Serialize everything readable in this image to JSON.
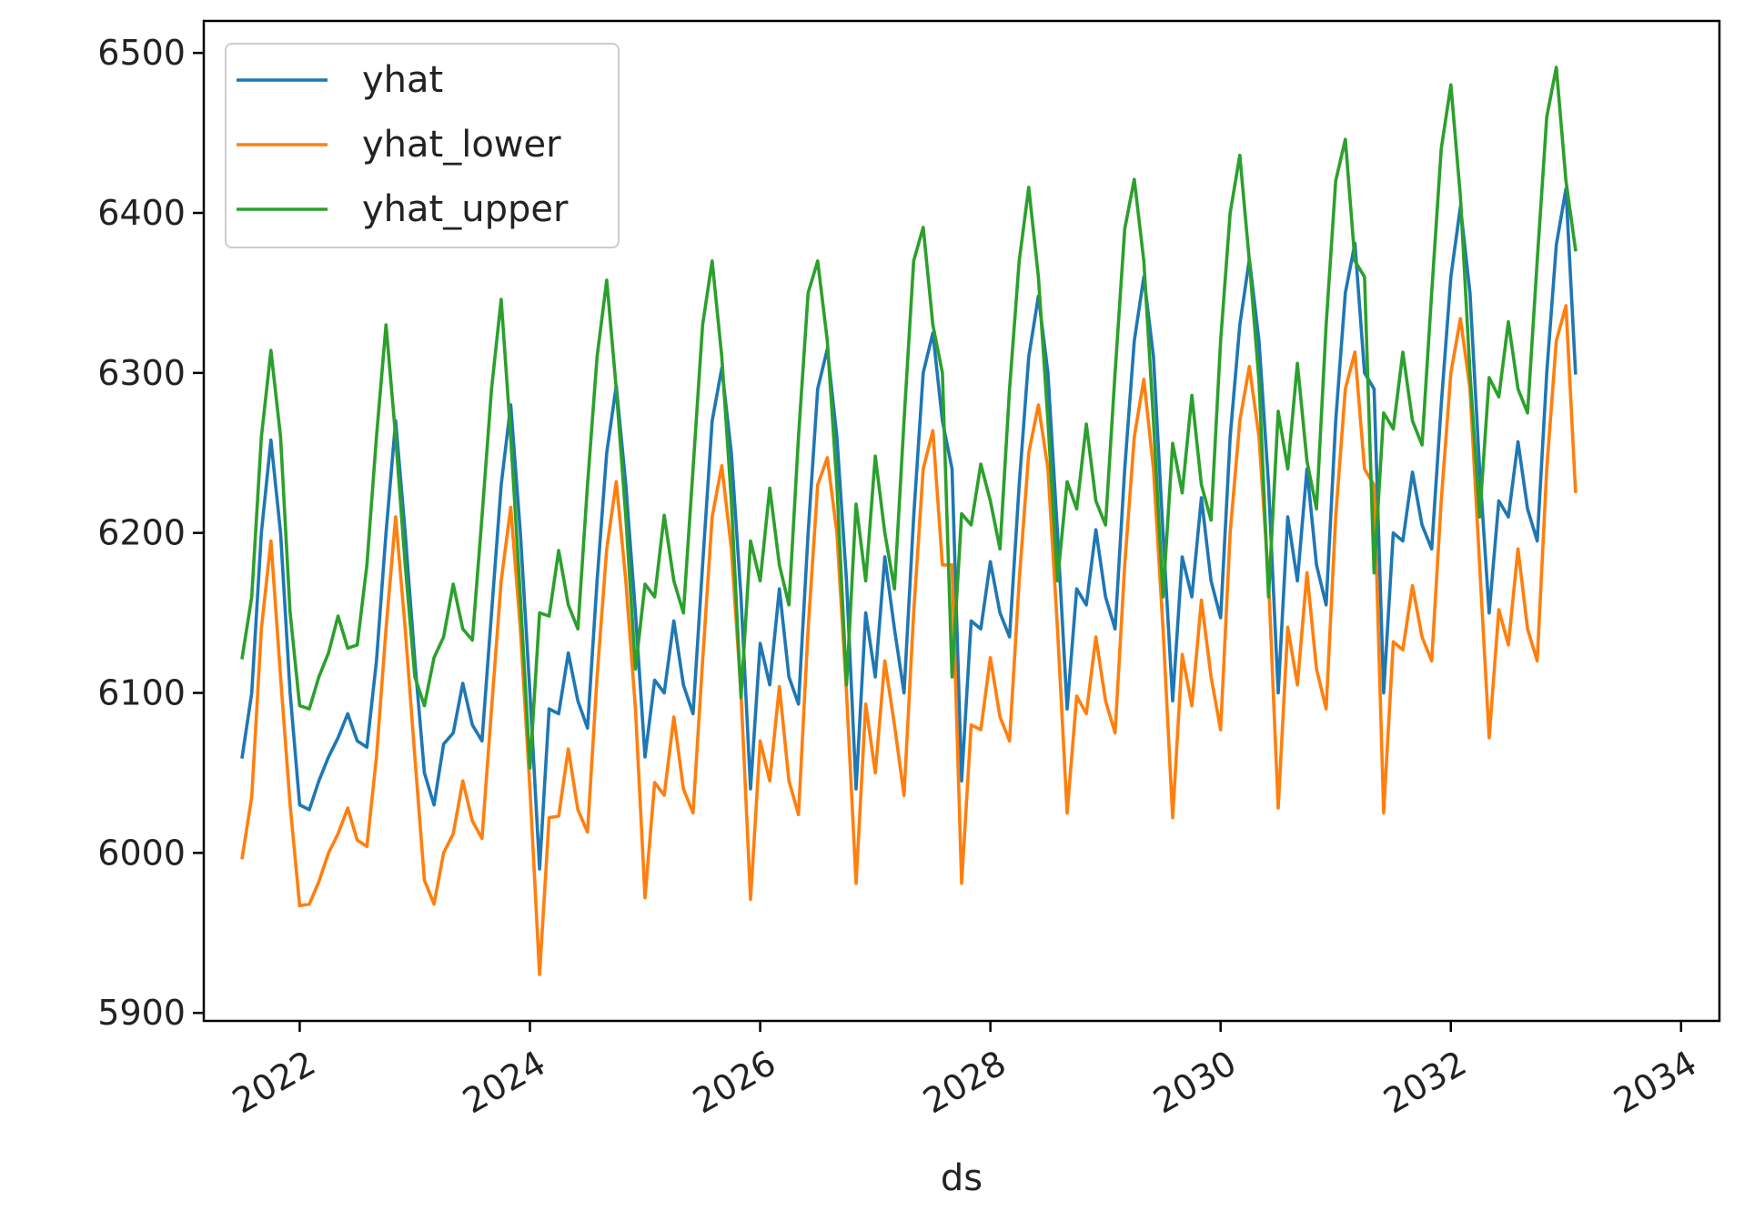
{
  "chart_data": {
    "type": "line",
    "title": "",
    "xlabel": "ds",
    "ylabel": "",
    "xlim": [
      "2021-03-01",
      "2034-05-01"
    ],
    "ylim": [
      5895,
      6520
    ],
    "x_ticks": [
      "2022",
      "2024",
      "2026",
      "2028",
      "2030",
      "2032",
      "2034"
    ],
    "y_ticks": [
      "5900",
      "6000",
      "6100",
      "6200",
      "6300",
      "6400",
      "6500"
    ],
    "legend_position": "upper left",
    "grid": false,
    "x_start": "2021-07-01",
    "x_frequency": "monthly",
    "series": [
      {
        "name": "yhat",
        "color": "#1f77b4",
        "values": [
          6060,
          6100,
          6200,
          6258,
          6200,
          6100,
          6030,
          6027,
          6045,
          6060,
          6072,
          6087,
          6070,
          6066,
          6120,
          6200,
          6270,
          6200,
          6120,
          6050,
          6030,
          6068,
          6075,
          6106,
          6080,
          6070,
          6150,
          6230,
          6280,
          6200,
          6100,
          5990,
          6090,
          6087,
          6125,
          6095,
          6078,
          6170,
          6250,
          6292,
          6230,
          6150,
          6060,
          6108,
          6100,
          6145,
          6105,
          6087,
          6180,
          6270,
          6303,
          6250,
          6160,
          6040,
          6131,
          6105,
          6165,
          6110,
          6093,
          6200,
          6290,
          6315,
          6260,
          6170,
          6040,
          6150,
          6110,
          6185,
          6140,
          6100,
          6210,
          6300,
          6325,
          6270,
          6240,
          6045,
          6145,
          6140,
          6182,
          6150,
          6135,
          6230,
          6310,
          6348,
          6300,
          6200,
          6090,
          6165,
          6155,
          6202,
          6160,
          6140,
          6240,
          6320,
          6360,
          6310,
          6200,
          6095,
          6185,
          6160,
          6222,
          6170,
          6147,
          6260,
          6330,
          6371,
          6320,
          6230,
          6100,
          6210,
          6170,
          6240,
          6180,
          6155,
          6270,
          6350,
          6381,
          6300,
          6290,
          6100,
          6200,
          6195,
          6238,
          6205,
          6190,
          6280,
          6360,
          6404,
          6350,
          6240,
          6150,
          6220,
          6210,
          6257,
          6215,
          6195,
          6300,
          6380,
          6415,
          6300
        ]
      },
      {
        "name": "yhat_lower",
        "color": "#ff7f0e",
        "values": [
          5997,
          6035,
          6140,
          6195,
          6110,
          6030,
          5967,
          5968,
          5982,
          6000,
          6012,
          6028,
          6008,
          6004,
          6060,
          6140,
          6210,
          6140,
          6060,
          5983,
          5968,
          6000,
          6012,
          6045,
          6020,
          6009,
          6090,
          6170,
          6216,
          6140,
          6040,
          5924,
          6022,
          6023,
          6065,
          6027,
          6013,
          6110,
          6190,
          6232,
          6170,
          6090,
          5972,
          6044,
          6036,
          6085,
          6040,
          6025,
          6120,
          6210,
          6242,
          6190,
          6100,
          5971,
          6070,
          6045,
          6104,
          6045,
          6024,
          6140,
          6230,
          6247,
          6200,
          6100,
          5981,
          6093,
          6050,
          6120,
          6080,
          6036,
          6150,
          6240,
          6264,
          6180,
          6180,
          5981,
          6080,
          6077,
          6122,
          6085,
          6070,
          6170,
          6250,
          6280,
          6240,
          6140,
          6025,
          6098,
          6087,
          6135,
          6095,
          6075,
          6180,
          6260,
          6296,
          6240,
          6140,
          6022,
          6124,
          6092,
          6158,
          6110,
          6077,
          6200,
          6270,
          6304,
          6260,
          6170,
          6028,
          6141,
          6105,
          6175,
          6115,
          6090,
          6210,
          6290,
          6313,
          6240,
          6230,
          6025,
          6132,
          6127,
          6167,
          6135,
          6120,
          6220,
          6300,
          6334,
          6290,
          6180,
          6072,
          6152,
          6130,
          6190,
          6140,
          6120,
          6240,
          6320,
          6342,
          6226
        ]
      },
      {
        "name": "yhat_upper",
        "color": "#2ca02c",
        "values": [
          6122,
          6160,
          6260,
          6314,
          6260,
          6150,
          6092,
          6090,
          6110,
          6125,
          6148,
          6128,
          6130,
          6180,
          6260,
          6330,
          6260,
          6180,
          6110,
          6092,
          6122,
          6135,
          6168,
          6140,
          6133,
          6210,
          6290,
          6346,
          6260,
          6160,
          6053,
          6150,
          6148,
          6189,
          6155,
          6140,
          6230,
          6310,
          6358,
          6290,
          6210,
          6115,
          6168,
          6160,
          6211,
          6170,
          6150,
          6240,
          6330,
          6370,
          6310,
          6220,
          6097,
          6195,
          6170,
          6228,
          6180,
          6155,
          6260,
          6350,
          6370,
          6320,
          6230,
          6105,
          6218,
          6170,
          6248,
          6200,
          6165,
          6270,
          6370,
          6391,
          6330,
          6300,
          6110,
          6212,
          6205,
          6243,
          6220,
          6190,
          6290,
          6370,
          6416,
          6360,
          6270,
          6170,
          6232,
          6215,
          6268,
          6220,
          6205,
          6300,
          6390,
          6421,
          6370,
          6270,
          6160,
          6256,
          6225,
          6286,
          6230,
          6208,
          6320,
          6400,
          6436,
          6370,
          6295,
          6160,
          6276,
          6240,
          6306,
          6245,
          6215,
          6330,
          6420,
          6446,
          6370,
          6360,
          6175,
          6275,
          6265,
          6313,
          6270,
          6255,
          6350,
          6440,
          6480,
          6410,
          6300,
          6210,
          6297,
          6285,
          6332,
          6290,
          6275,
          6370,
          6460,
          6491,
          6420,
          6377
        ]
      }
    ]
  }
}
